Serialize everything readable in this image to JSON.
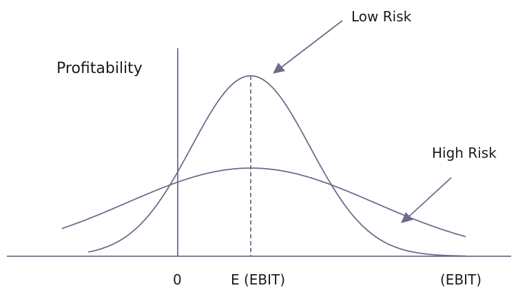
{
  "diagram": {
    "y_axis_label": "Profitability",
    "zero_label": "0",
    "mean_label": "E (EBIT)",
    "x_axis_label": "(EBIT)",
    "low_risk_label": "Low Risk",
    "high_risk_label": "High Risk",
    "stroke_color": "#6e6a8c"
  }
}
